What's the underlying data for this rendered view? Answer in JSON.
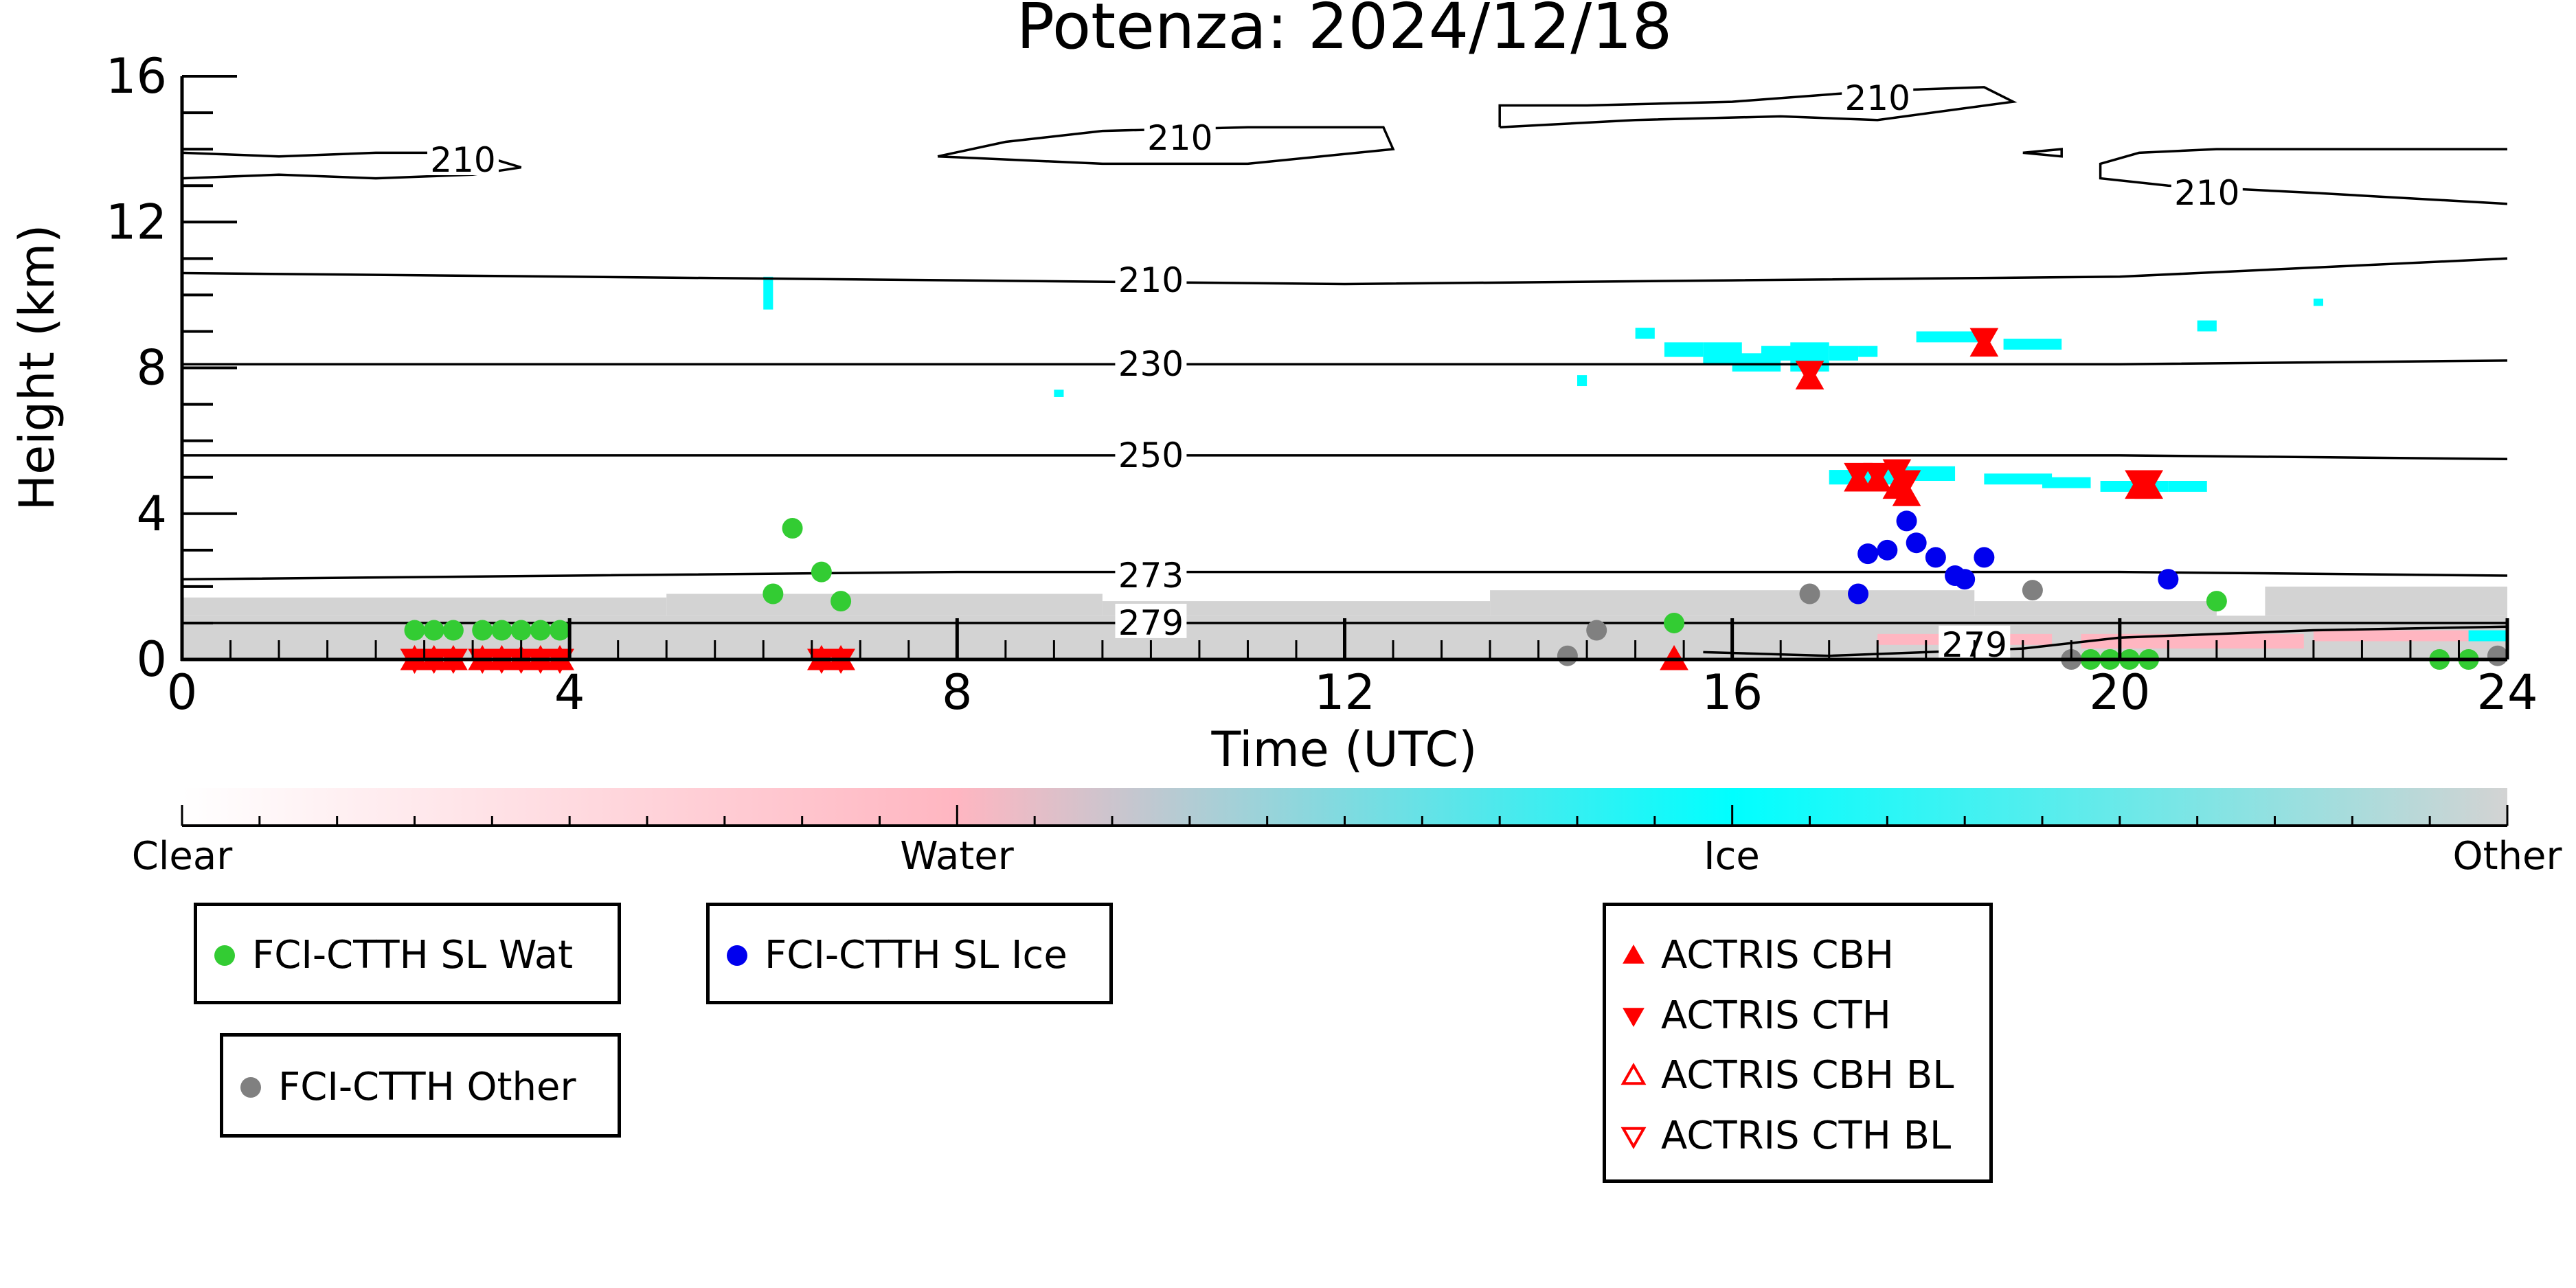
{
  "chart_data": {
    "type": "scatter",
    "title": "Potenza: 2024/12/18",
    "xlabel": "Time (UTC)",
    "ylabel": "Height (km)",
    "xlim": [
      0,
      24
    ],
    "ylim": [
      0,
      16
    ],
    "xticks": [
      0,
      4,
      8,
      12,
      16,
      20,
      24
    ],
    "yticks": [
      0,
      4,
      8,
      12,
      16
    ],
    "colorbar": {
      "labels": [
        "Clear",
        "Water",
        "Ice",
        "Other"
      ],
      "colors": [
        "#ffffff",
        "#ffb6c1",
        "#00ffff",
        "#d3d3d3"
      ]
    },
    "contours": [
      {
        "label": "210",
        "points": [
          [
            0.0,
            13.2
          ],
          [
            1.0,
            13.3
          ],
          [
            2.0,
            13.2
          ],
          [
            3.0,
            13.3
          ],
          [
            3.5,
            13.5
          ],
          [
            3.0,
            13.9
          ],
          [
            2.0,
            13.9
          ],
          [
            1.0,
            13.8
          ],
          [
            0.0,
            13.9
          ]
        ],
        "label_at": [
          2.9,
          13.7
        ]
      },
      {
        "label": "210",
        "points": [
          [
            7.8,
            13.8
          ],
          [
            9.5,
            13.6
          ],
          [
            11.0,
            13.6
          ],
          [
            12.5,
            14.0
          ],
          [
            12.4,
            14.6
          ],
          [
            11.0,
            14.6
          ],
          [
            9.5,
            14.5
          ],
          [
            8.5,
            14.2
          ],
          [
            7.8,
            13.8
          ]
        ],
        "label_at": [
          10.3,
          14.3
        ]
      },
      {
        "label": "210",
        "points": [
          [
            13.6,
            14.6
          ],
          [
            15.0,
            14.8
          ],
          [
            16.5,
            14.9
          ],
          [
            17.5,
            14.8
          ],
          [
            18.9,
            15.3
          ],
          [
            18.6,
            15.7
          ],
          [
            17.5,
            15.6
          ],
          [
            16.0,
            15.3
          ],
          [
            14.5,
            15.2
          ],
          [
            13.6,
            15.2
          ],
          [
            13.6,
            14.6
          ]
        ],
        "label_at": [
          17.5,
          15.4
        ]
      },
      {
        "label": "210",
        "points": [
          [
            19.0,
            13.9
          ],
          [
            19.4,
            14.0
          ],
          [
            19.4,
            13.8
          ],
          [
            19.0,
            13.9
          ]
        ],
        "label_at": null
      },
      {
        "label": "210",
        "points": [
          [
            24.0,
            12.5
          ],
          [
            22.0,
            12.8
          ],
          [
            20.5,
            13.0
          ],
          [
            19.8,
            13.2
          ],
          [
            19.8,
            13.6
          ],
          [
            20.2,
            13.9
          ],
          [
            21.0,
            14.0
          ],
          [
            22.5,
            14.0
          ],
          [
            24.0,
            14.0
          ]
        ],
        "label_at": [
          20.9,
          12.8
        ]
      },
      {
        "label": "210",
        "points": [
          [
            0,
            10.6
          ],
          [
            4,
            10.5
          ],
          [
            8,
            10.4
          ],
          [
            12,
            10.3
          ],
          [
            16,
            10.4
          ],
          [
            20,
            10.5
          ],
          [
            24,
            11.0
          ]
        ],
        "label_at": [
          10.0,
          10.4
        ]
      },
      {
        "label": "230",
        "points": [
          [
            0,
            8.1
          ],
          [
            4,
            8.1
          ],
          [
            8,
            8.1
          ],
          [
            12,
            8.1
          ],
          [
            16,
            8.1
          ],
          [
            20,
            8.1
          ],
          [
            24,
            8.2
          ]
        ],
        "label_at": [
          10.0,
          8.1
        ]
      },
      {
        "label": "250",
        "points": [
          [
            0,
            5.6
          ],
          [
            4,
            5.6
          ],
          [
            8,
            5.6
          ],
          [
            12,
            5.6
          ],
          [
            16,
            5.6
          ],
          [
            20,
            5.6
          ],
          [
            24,
            5.5
          ]
        ],
        "label_at": [
          10.0,
          5.6
        ]
      },
      {
        "label": "273",
        "points": [
          [
            0,
            2.2
          ],
          [
            4,
            2.3
          ],
          [
            8,
            2.4
          ],
          [
            12,
            2.4
          ],
          [
            16,
            2.4
          ],
          [
            20,
            2.4
          ],
          [
            24,
            2.3
          ]
        ],
        "label_at": [
          10.0,
          2.3
        ]
      },
      {
        "label": "279",
        "points": [
          [
            0,
            1.0
          ],
          [
            4,
            1.0
          ],
          [
            8,
            1.0
          ],
          [
            12,
            1.0
          ],
          [
            16,
            1.0
          ],
          [
            20,
            1.0
          ],
          [
            24,
            1.0
          ]
        ],
        "label_at": [
          10.0,
          1.0
        ]
      },
      {
        "label": "279",
        "points": [
          [
            15.7,
            0.2
          ],
          [
            17,
            0.1
          ],
          [
            18,
            0.2
          ],
          [
            19,
            0.3
          ],
          [
            20,
            0.6
          ],
          [
            22,
            0.8
          ],
          [
            24,
            0.9
          ]
        ],
        "label_at": [
          18.5,
          0.4
        ]
      }
    ],
    "ice_regions": [
      [
        6.0,
        9.6,
        0.1,
        0.9
      ],
      [
        9.0,
        7.2,
        0.1,
        0.2
      ],
      [
        14.4,
        7.5,
        0.1,
        0.3
      ],
      [
        15.0,
        8.8,
        0.2,
        0.3
      ],
      [
        15.3,
        8.3,
        0.4,
        0.4
      ],
      [
        15.7,
        8.1,
        0.4,
        0.6
      ],
      [
        16.0,
        7.9,
        0.5,
        0.5
      ],
      [
        16.3,
        8.2,
        0.4,
        0.4
      ],
      [
        16.6,
        7.9,
        0.4,
        0.8
      ],
      [
        17.0,
        8.2,
        0.3,
        0.4
      ],
      [
        17.3,
        8.3,
        0.2,
        0.3
      ],
      [
        17.9,
        8.7,
        0.7,
        0.3
      ],
      [
        18.8,
        8.5,
        0.6,
        0.3
      ],
      [
        20.8,
        9.0,
        0.2,
        0.3
      ],
      [
        22.0,
        9.7,
        0.1,
        0.2
      ],
      [
        17.0,
        4.8,
        0.8,
        0.4
      ],
      [
        17.6,
        4.9,
        0.7,
        0.4
      ],
      [
        18.6,
        4.8,
        0.7,
        0.3
      ],
      [
        19.2,
        4.7,
        0.5,
        0.3
      ],
      [
        19.8,
        4.6,
        0.7,
        0.3
      ],
      [
        20.5,
        4.6,
        0.4,
        0.3
      ],
      [
        23.6,
        0.5,
        0.4,
        0.3
      ]
    ],
    "water_regions": [
      [
        17.5,
        0.4,
        1.8,
        0.3
      ],
      [
        19.6,
        0.3,
        2.3,
        0.4
      ],
      [
        22.0,
        0.5,
        2.0,
        0.3
      ]
    ],
    "other_regions": [
      [
        0.0,
        0.0,
        24.0,
        1.2
      ],
      [
        0.0,
        1.2,
        5.0,
        0.5
      ],
      [
        5.0,
        1.2,
        4.5,
        0.6
      ],
      [
        9.5,
        1.2,
        4.0,
        0.4
      ],
      [
        13.5,
        1.2,
        5.0,
        0.7
      ],
      [
        18.5,
        1.2,
        2.5,
        0.4
      ],
      [
        21.5,
        1.2,
        2.5,
        0.8
      ]
    ],
    "series": [
      {
        "name": "FCI-CTTH SL Wat",
        "marker": "circle",
        "color": "#33cc33",
        "x": [
          2.4,
          2.6,
          2.8,
          3.1,
          3.3,
          3.5,
          3.7,
          3.9,
          6.1,
          6.3,
          6.6,
          6.8,
          15.4,
          19.7,
          19.9,
          20.1,
          20.3,
          21.0,
          23.3,
          23.6
        ],
        "y": [
          0.8,
          0.8,
          0.8,
          0.8,
          0.8,
          0.8,
          0.8,
          0.8,
          1.8,
          3.6,
          2.4,
          1.6,
          1.0,
          0.0,
          0.0,
          0.0,
          0.0,
          1.6,
          0.0,
          0.0
        ]
      },
      {
        "name": "FCI-CTTH SL Ice",
        "marker": "circle",
        "color": "#0000ee",
        "x": [
          17.3,
          17.4,
          17.6,
          17.8,
          17.9,
          18.1,
          18.3,
          18.4,
          18.6,
          20.5
        ],
        "y": [
          1.8,
          2.9,
          3.0,
          3.8,
          3.2,
          2.8,
          2.3,
          2.2,
          2.8,
          2.2
        ]
      },
      {
        "name": "FCI-CTTH Other",
        "marker": "circle",
        "color": "#808080",
        "x": [
          14.3,
          14.6,
          16.8,
          19.1,
          19.5,
          23.9
        ],
        "y": [
          0.1,
          0.8,
          1.8,
          1.9,
          0.0,
          0.1
        ]
      },
      {
        "name": "ACTRIS CBH",
        "marker": "triangle-up",
        "color": "#ff0000",
        "x": [
          2.4,
          2.6,
          2.8,
          3.1,
          3.3,
          3.5,
          3.7,
          3.9,
          6.6,
          6.8,
          15.4,
          16.8,
          17.3,
          17.5,
          17.7,
          17.8,
          18.6,
          20.2,
          20.3
        ],
        "y": [
          0.0,
          0.0,
          0.0,
          0.0,
          0.0,
          0.0,
          0.0,
          0.0,
          0.0,
          0.0,
          0.0,
          7.7,
          4.9,
          4.9,
          4.7,
          4.5,
          8.6,
          4.7,
          4.7
        ]
      },
      {
        "name": "ACTRIS CTH",
        "marker": "triangle-down",
        "color": "#ff0000",
        "x": [
          2.4,
          2.6,
          2.8,
          3.1,
          3.3,
          3.5,
          3.7,
          3.9,
          6.6,
          6.8,
          16.8,
          17.3,
          17.5,
          17.7,
          17.8,
          18.6,
          20.2,
          20.3
        ],
        "y": [
          0.0,
          0.0,
          0.0,
          0.0,
          0.0,
          0.0,
          0.0,
          0.0,
          0.0,
          0.0,
          7.9,
          5.1,
          5.1,
          5.2,
          4.9,
          8.8,
          4.9,
          4.9
        ]
      },
      {
        "name": "ACTRIS CBH BL",
        "marker": "triangle-up-open",
        "color": "#ff0000",
        "x": [],
        "y": []
      },
      {
        "name": "ACTRIS CTH BL",
        "marker": "triangle-down-open",
        "color": "#ff0000",
        "x": [],
        "y": []
      }
    ]
  },
  "legends": [
    {
      "entries": [
        {
          "label": "FCI-CTTH SL Wat",
          "marker": "circle",
          "color": "#33cc33"
        }
      ]
    },
    {
      "entries": [
        {
          "label": "FCI-CTTH SL Ice",
          "marker": "circle",
          "color": "#0000ee"
        }
      ]
    },
    {
      "entries": [
        {
          "label": "ACTRIS CBH",
          "marker": "triangle-up",
          "color": "#ff0000"
        },
        {
          "label": "ACTRIS CTH",
          "marker": "triangle-down",
          "color": "#ff0000"
        },
        {
          "label": "ACTRIS CBH BL",
          "marker": "triangle-up-open",
          "color": "#ff0000"
        },
        {
          "label": "ACTRIS CTH BL",
          "marker": "triangle-down-open",
          "color": "#ff0000"
        }
      ]
    },
    {
      "entries": [
        {
          "label": "FCI-CTTH Other",
          "marker": "circle",
          "color": "#808080"
        }
      ]
    }
  ]
}
